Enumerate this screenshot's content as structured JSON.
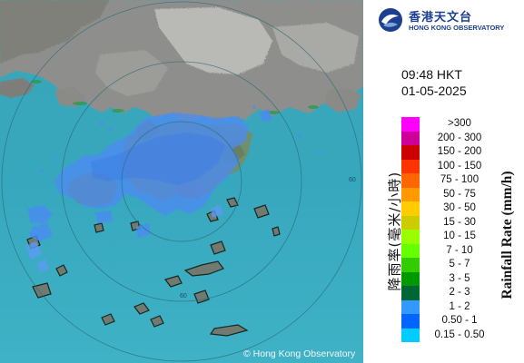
{
  "header": {
    "org_name_cn": "香港天文台",
    "org_name_en": "HONG KONG OBSERVATORY",
    "time": "09:48 HKT",
    "date": "01-05-2025"
  },
  "map": {
    "range_ring_label": "60",
    "copyright": "© Hong Kong Observatory"
  },
  "legend": {
    "title_cn": "降雨率(毫米/小時)",
    "title_en": "Rainfall Rate (mm/h)",
    "items": [
      {
        "label": ">300",
        "color": "#ff00ff"
      },
      {
        "label": "200 - 300",
        "color": "#cc0099"
      },
      {
        "label": "150 - 200",
        "color": "#cc0000"
      },
      {
        "label": "100 - 150",
        "color": "#ff3300"
      },
      {
        "label": "75 - 100",
        "color": "#ff6600"
      },
      {
        "label": "50 - 75",
        "color": "#ff9900"
      },
      {
        "label": "30 - 50",
        "color": "#ffcc00"
      },
      {
        "label": "15 - 30",
        "color": "#cccc00"
      },
      {
        "label": "10 - 15",
        "color": "#99ff00"
      },
      {
        "label": "7 - 10",
        "color": "#66ff00"
      },
      {
        "label": "5 - 7",
        "color": "#33cc00"
      },
      {
        "label": "3 - 5",
        "color": "#009900"
      },
      {
        "label": "2 - 3",
        "color": "#006633"
      },
      {
        "label": "1 - 2",
        "color": "#3399ff"
      },
      {
        "label": "0.50 - 1",
        "color": "#0066ff"
      },
      {
        "label": "0.15 - 0.50",
        "color": "#00ccff"
      }
    ]
  }
}
